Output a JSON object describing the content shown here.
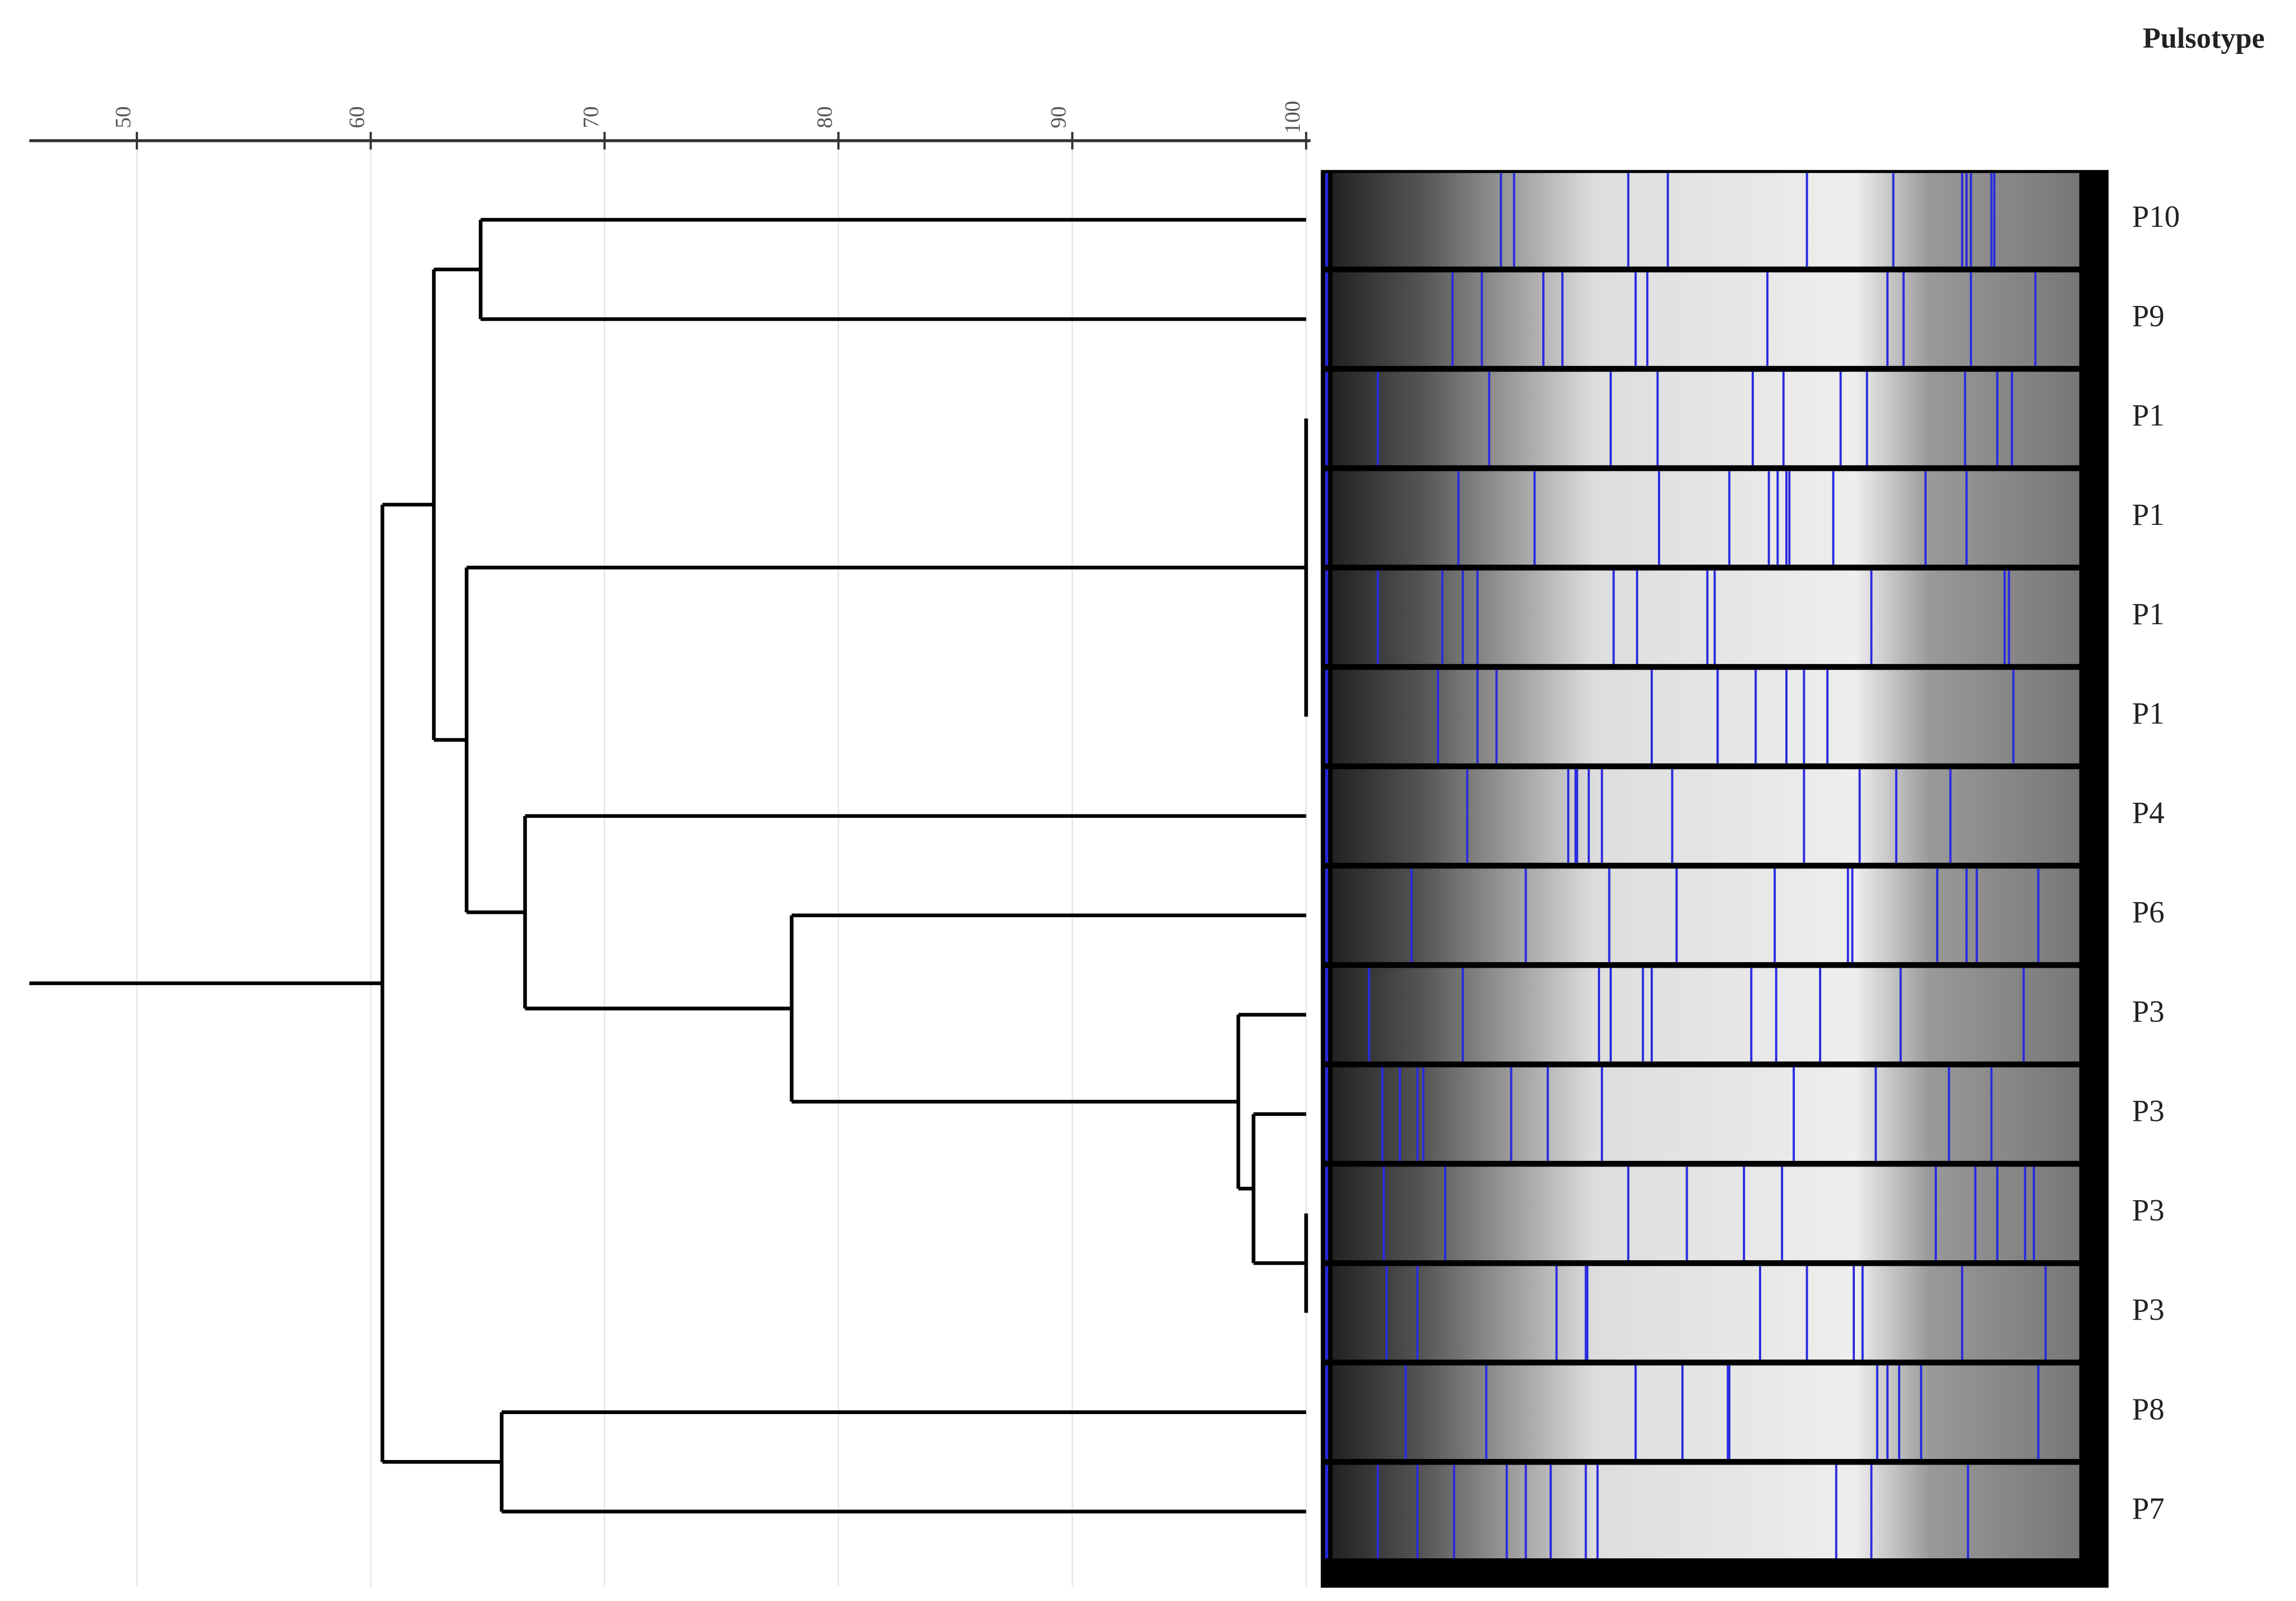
{
  "chart_data": {
    "type": "dendrogram",
    "header": "Pulsotype",
    "xlim": [
      45.4,
      100
    ],
    "xticks": [
      50,
      60,
      70,
      80,
      90,
      100
    ],
    "grid": true,
    "tree": {
      "similarity": 60.5,
      "children": [
        {
          "similarity": 62.7,
          "children": [
            {
              "similarity": 64.7,
              "children": [
                {
                  "label": "P10"
                },
                {
                  "label": "P9"
                }
              ]
            },
            {
              "similarity": 64.1,
              "children": [
                {
                  "similarity": 100,
                  "children": [
                    {
                      "label": "P1"
                    },
                    {
                      "label": "P1"
                    },
                    {
                      "label": "P1"
                    },
                    {
                      "label": "P1"
                    }
                  ]
                },
                {
                  "similarity": 66.6,
                  "children": [
                    {
                      "label": "P4"
                    },
                    {
                      "similarity": 78,
                      "children": [
                        {
                          "label": "P6"
                        },
                        {
                          "similarity": 97.1,
                          "children": [
                            {
                              "label": "P3"
                            },
                            {
                              "similarity": 97.75,
                              "children": [
                                {
                                  "label": "P3"
                                },
                                {
                                  "similarity": 100,
                                  "children": [
                                    {
                                      "label": "P3"
                                    },
                                    {
                                      "label": "P3"
                                    }
                                  ]
                                }
                              ]
                            }
                          ]
                        }
                      ]
                    }
                  ]
                }
              ]
            }
          ]
        },
        {
          "similarity": 65.6,
          "children": [
            {
              "label": "P8"
            },
            {
              "label": "P7"
            }
          ]
        }
      ]
    }
  }
}
